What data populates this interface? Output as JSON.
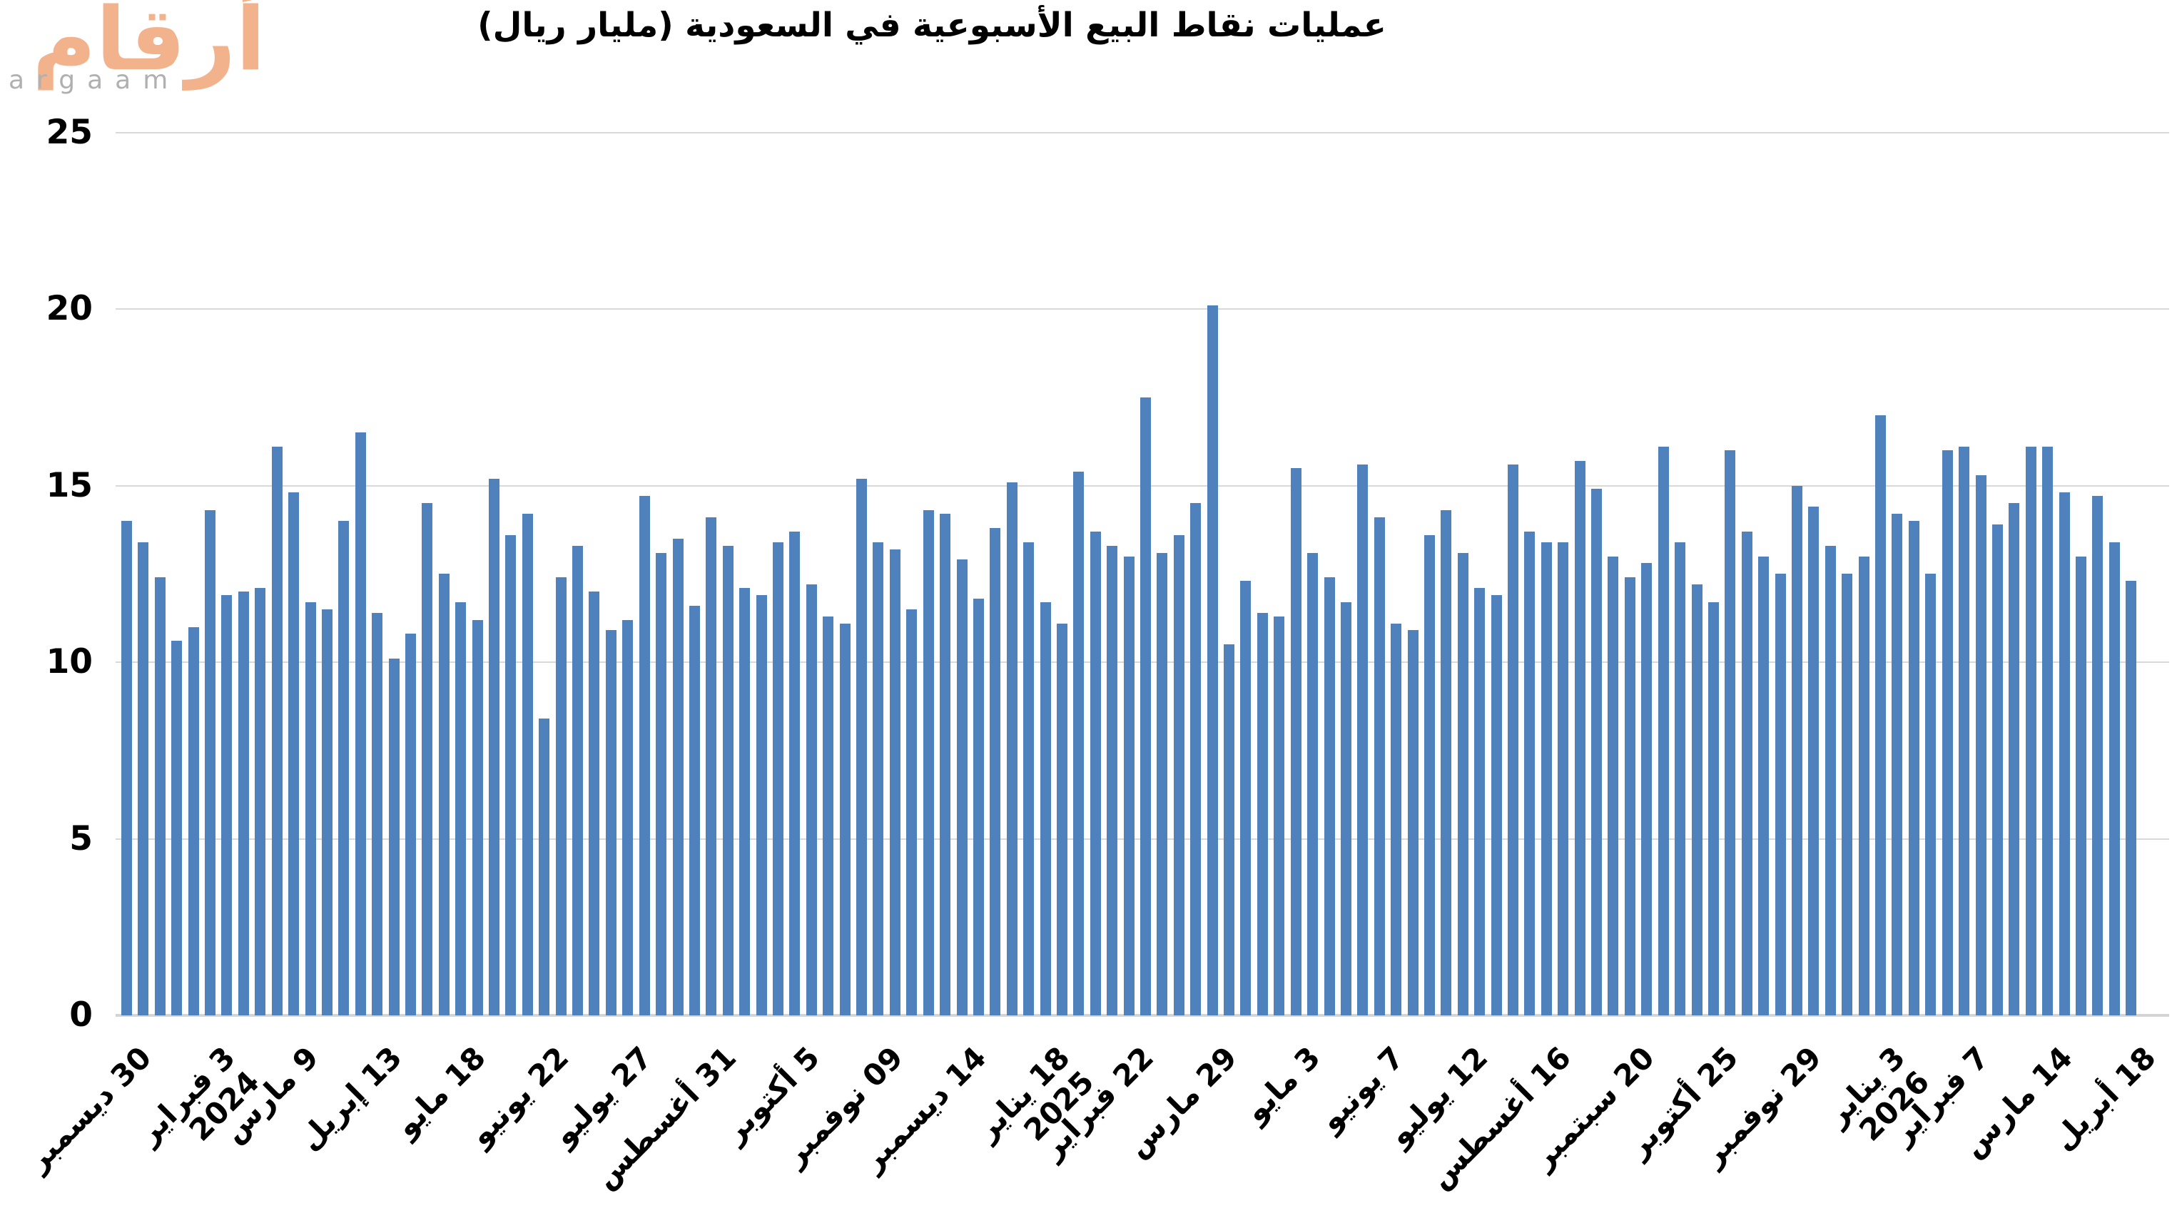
{
  "logo": {
    "arabic": "أرقام",
    "latin": "argaam"
  },
  "chart_data": {
    "type": "bar",
    "title": "عمليات نقاط البيع الأسبوعية في السعودية (مليار ريال)",
    "xlabel": "",
    "ylabel": "مليار ريال",
    "ylim": [
      0,
      25
    ],
    "yticks": [
      0,
      5,
      10,
      15,
      20,
      25
    ],
    "grid": true,
    "legend": "none",
    "bar_color": "#4f81bd",
    "gridline_color": "#d9d9d9",
    "axis_line_color": "#d4d4d4",
    "tick_every": 5,
    "x_tick_labels": [
      {
        "label": "30 ديسمبر",
        "year": ""
      },
      {
        "label": "3 فبراير",
        "year": "2024"
      },
      {
        "label": "9 مارس",
        "year": ""
      },
      {
        "label": "13 إبريل",
        "year": ""
      },
      {
        "label": "18 مايو",
        "year": ""
      },
      {
        "label": "22 يونيو",
        "year": ""
      },
      {
        "label": "27 يوليو",
        "year": ""
      },
      {
        "label": "31 أغسطس",
        "year": ""
      },
      {
        "label": "5 أكتوبر",
        "year": ""
      },
      {
        "label": "09 نوفمبر",
        "year": ""
      },
      {
        "label": "14 ديسمبر",
        "year": ""
      },
      {
        "label": "18 يناير",
        "year": "2025"
      },
      {
        "label": "22 فبراير",
        "year": ""
      },
      {
        "label": "29 مارس",
        "year": ""
      },
      {
        "label": "3 مايو",
        "year": ""
      },
      {
        "label": "7 يونيو",
        "year": ""
      },
      {
        "label": "12 يوليو",
        "year": ""
      },
      {
        "label": "16 أغسطس",
        "year": ""
      },
      {
        "label": "20 سبتمبر",
        "year": ""
      },
      {
        "label": "25 أكتوبر",
        "year": ""
      },
      {
        "label": "29 نوفمبر",
        "year": ""
      },
      {
        "label": "3 يناير",
        "year": "2026"
      },
      {
        "label": "7 فبراير",
        "year": ""
      },
      {
        "label": "14 مارس",
        "year": ""
      },
      {
        "label": "18 أبريل",
        "year": ""
      }
    ],
    "values": [
      14.0,
      13.4,
      12.4,
      10.6,
      11.0,
      14.3,
      11.9,
      12.0,
      12.1,
      16.1,
      14.8,
      11.7,
      11.5,
      14.0,
      16.5,
      11.4,
      10.1,
      10.8,
      14.5,
      12.5,
      11.7,
      11.2,
      15.2,
      13.6,
      14.2,
      8.4,
      12.4,
      13.3,
      12.0,
      10.9,
      11.2,
      14.7,
      13.1,
      13.5,
      11.6,
      14.1,
      13.3,
      12.1,
      11.9,
      13.4,
      13.7,
      12.2,
      11.3,
      11.1,
      15.2,
      13.4,
      13.2,
      11.5,
      14.3,
      14.2,
      12.9,
      11.8,
      13.8,
      15.1,
      13.4,
      11.7,
      11.1,
      15.4,
      13.7,
      13.3,
      13.0,
      17.5,
      13.1,
      13.6,
      14.5,
      20.1,
      10.5,
      12.3,
      11.4,
      11.3,
      15.5,
      13.1,
      12.4,
      11.7,
      15.6,
      14.1,
      11.1,
      10.9,
      13.6,
      14.3,
      13.1,
      12.1,
      11.9,
      15.6,
      13.7,
      13.4,
      13.4,
      15.7,
      14.9,
      13.0,
      12.4,
      12.8,
      16.1,
      13.4,
      12.2,
      11.7,
      16.0,
      13.7,
      13.0,
      12.5,
      15.0,
      14.4,
      13.3,
      12.5,
      13.0,
      17.0,
      14.2,
      14.0,
      12.5,
      16.0,
      16.1,
      15.3,
      13.9,
      14.5,
      16.1,
      16.1,
      14.8,
      13.0,
      14.7,
      13.4,
      12.3
    ]
  }
}
